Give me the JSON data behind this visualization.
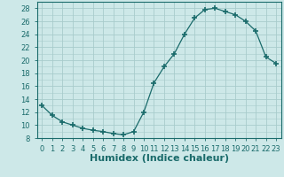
{
  "x": [
    0,
    1,
    2,
    3,
    4,
    5,
    6,
    7,
    8,
    9,
    10,
    11,
    12,
    13,
    14,
    15,
    16,
    17,
    18,
    19,
    20,
    21,
    22,
    23
  ],
  "y": [
    13.0,
    11.5,
    10.5,
    10.0,
    9.5,
    9.2,
    9.0,
    8.7,
    8.5,
    9.0,
    12.0,
    16.5,
    19.0,
    21.0,
    24.0,
    26.5,
    27.8,
    28.0,
    27.5,
    27.0,
    26.0,
    24.5,
    20.5,
    19.5
  ],
  "line_color": "#1a6b6b",
  "marker": "+",
  "marker_size": 4,
  "marker_lw": 1.2,
  "bg_color": "#cde8e8",
  "grid_color": "#a8cccc",
  "xlabel": "Humidex (Indice chaleur)",
  "ylabel_ticks": [
    8,
    10,
    12,
    14,
    16,
    18,
    20,
    22,
    24,
    26,
    28
  ],
  "xlim": [
    -0.5,
    23.5
  ],
  "ylim": [
    8,
    29
  ],
  "xticks": [
    0,
    1,
    2,
    3,
    4,
    5,
    6,
    7,
    8,
    9,
    10,
    11,
    12,
    13,
    14,
    15,
    16,
    17,
    18,
    19,
    20,
    21,
    22,
    23
  ],
  "xtick_labels": [
    "0",
    "1",
    "2",
    "3",
    "4",
    "5",
    "6",
    "7",
    "8",
    "9",
    "10",
    "11",
    "12",
    "13",
    "14",
    "15",
    "16",
    "17",
    "18",
    "19",
    "20",
    "21",
    "22",
    "23"
  ],
  "tick_color": "#1a6b6b",
  "label_fontsize": 7,
  "tick_fontsize": 6,
  "xlabel_fontsize": 8
}
